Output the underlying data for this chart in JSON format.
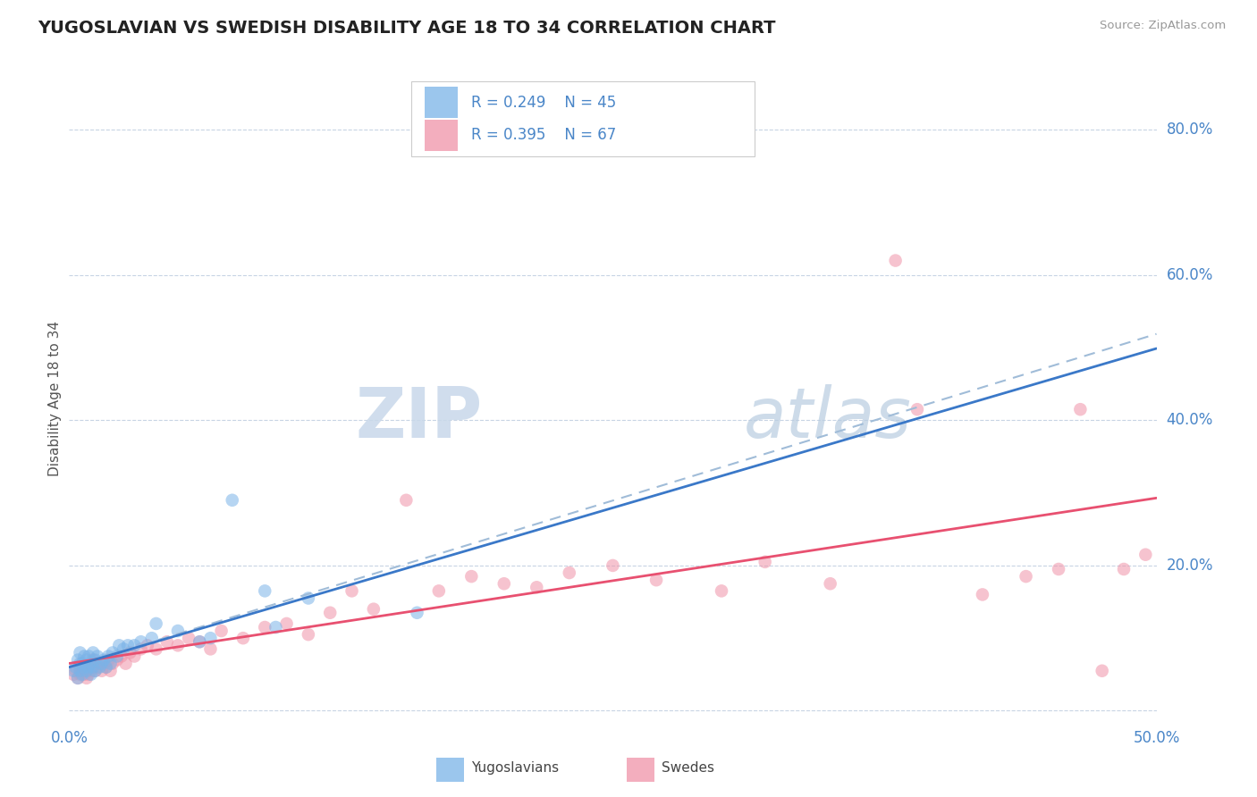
{
  "title": "YUGOSLAVIAN VS SWEDISH DISABILITY AGE 18 TO 34 CORRELATION CHART",
  "source": "Source: ZipAtlas.com",
  "ylabel": "Disability Age 18 to 34",
  "ytick_values": [
    0.0,
    0.2,
    0.4,
    0.6,
    0.8
  ],
  "xlim": [
    0.0,
    0.5
  ],
  "ylim": [
    -0.02,
    0.88
  ],
  "yugo_color": "#7ab3e8",
  "swede_color": "#f093a8",
  "trend_yugo_color": "#3a78c8",
  "trend_swede_color": "#e85070",
  "trend_dashed_color": "#a0bcd8",
  "watermark_zip_color": "#c8d8ea",
  "watermark_atlas_color": "#b8cce0",
  "background_color": "#ffffff",
  "grid_color": "#c8d4e4",
  "title_color": "#222222",
  "axis_label_color": "#4a86c8",
  "legend_R_yugo": "0.249",
  "legend_N_yugo": "45",
  "legend_R_swede": "0.395",
  "legend_N_swede": "67",
  "yugo_x": [
    0.002,
    0.003,
    0.004,
    0.004,
    0.005,
    0.005,
    0.005,
    0.006,
    0.006,
    0.007,
    0.007,
    0.008,
    0.008,
    0.009,
    0.009,
    0.01,
    0.01,
    0.011,
    0.011,
    0.012,
    0.012,
    0.013,
    0.014,
    0.015,
    0.016,
    0.017,
    0.018,
    0.019,
    0.02,
    0.022,
    0.023,
    0.025,
    0.027,
    0.03,
    0.033,
    0.038,
    0.04,
    0.05,
    0.06,
    0.065,
    0.075,
    0.09,
    0.095,
    0.11,
    0.16
  ],
  "yugo_y": [
    0.055,
    0.06,
    0.045,
    0.07,
    0.055,
    0.065,
    0.08,
    0.05,
    0.065,
    0.06,
    0.075,
    0.055,
    0.07,
    0.06,
    0.075,
    0.05,
    0.065,
    0.06,
    0.08,
    0.055,
    0.07,
    0.075,
    0.06,
    0.065,
    0.07,
    0.06,
    0.075,
    0.065,
    0.08,
    0.075,
    0.09,
    0.085,
    0.09,
    0.09,
    0.095,
    0.1,
    0.12,
    0.11,
    0.095,
    0.1,
    0.29,
    0.165,
    0.115,
    0.155,
    0.135
  ],
  "swede_x": [
    0.002,
    0.003,
    0.004,
    0.005,
    0.005,
    0.006,
    0.006,
    0.007,
    0.007,
    0.008,
    0.008,
    0.009,
    0.009,
    0.01,
    0.01,
    0.011,
    0.011,
    0.012,
    0.013,
    0.014,
    0.015,
    0.016,
    0.017,
    0.018,
    0.019,
    0.02,
    0.022,
    0.024,
    0.026,
    0.028,
    0.03,
    0.033,
    0.036,
    0.04,
    0.045,
    0.05,
    0.055,
    0.06,
    0.065,
    0.07,
    0.08,
    0.09,
    0.1,
    0.11,
    0.12,
    0.13,
    0.14,
    0.155,
    0.17,
    0.185,
    0.2,
    0.215,
    0.23,
    0.25,
    0.27,
    0.3,
    0.32,
    0.35,
    0.38,
    0.39,
    0.42,
    0.44,
    0.455,
    0.465,
    0.475,
    0.485,
    0.495
  ],
  "swede_y": [
    0.05,
    0.055,
    0.045,
    0.06,
    0.05,
    0.055,
    0.065,
    0.05,
    0.06,
    0.045,
    0.055,
    0.06,
    0.05,
    0.065,
    0.055,
    0.06,
    0.07,
    0.055,
    0.06,
    0.065,
    0.055,
    0.065,
    0.06,
    0.07,
    0.055,
    0.065,
    0.07,
    0.075,
    0.065,
    0.08,
    0.075,
    0.085,
    0.09,
    0.085,
    0.095,
    0.09,
    0.1,
    0.095,
    0.085,
    0.11,
    0.1,
    0.115,
    0.12,
    0.105,
    0.135,
    0.165,
    0.14,
    0.29,
    0.165,
    0.185,
    0.175,
    0.17,
    0.19,
    0.2,
    0.18,
    0.165,
    0.205,
    0.175,
    0.62,
    0.415,
    0.16,
    0.185,
    0.195,
    0.415,
    0.055,
    0.195,
    0.215
  ]
}
